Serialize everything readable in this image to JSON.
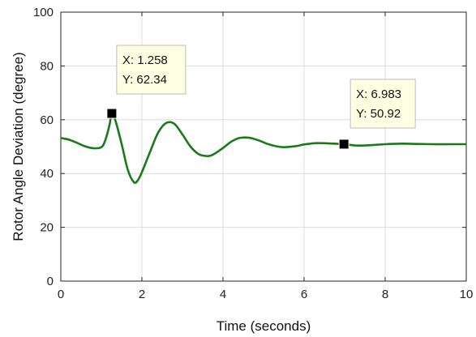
{
  "chart_data": {
    "type": "line",
    "title": "",
    "xlabel": "Time (seconds)",
    "ylabel": "Rotor Angle Deviation (degree)",
    "xlim": [
      0,
      10
    ],
    "ylim": [
      0,
      100
    ],
    "xticks": [
      0,
      2,
      4,
      6,
      8,
      10
    ],
    "yticks": [
      0,
      20,
      40,
      60,
      80,
      100
    ],
    "grid": true,
    "line_color": "#1a7a1a",
    "series": [
      {
        "x": [
          0,
          0.2,
          0.4,
          0.6,
          0.8,
          1.0,
          1.1,
          1.2,
          1.258,
          1.35,
          1.5,
          1.65,
          1.8,
          1.9,
          2.0,
          2.2,
          2.4,
          2.6,
          2.8,
          3.0,
          3.2,
          3.4,
          3.6,
          3.75,
          4.0,
          4.2,
          4.4,
          4.65,
          4.9,
          5.1,
          5.3,
          5.5,
          5.8,
          6.0,
          6.3,
          6.6,
          6.983,
          7.3,
          7.6,
          8.0,
          8.4,
          8.8,
          9.2,
          9.6,
          10.0
        ],
        "y": [
          53.2,
          52.6,
          51.4,
          50.1,
          49.4,
          49.8,
          52.5,
          58,
          62.34,
          59.5,
          51,
          41.5,
          36.8,
          37.5,
          40.5,
          48,
          55.2,
          58.8,
          58.5,
          54.5,
          50,
          47.2,
          46.5,
          47,
          49.5,
          51.8,
          53.2,
          53.3,
          52.2,
          51,
          50.2,
          49.8,
          50.2,
          50.8,
          51.3,
          51.2,
          50.92,
          50.4,
          50.5,
          50.9,
          51.1,
          51.0,
          50.9,
          50.9,
          50.9
        ]
      }
    ],
    "datatips": [
      {
        "x_label": "X: 1.258",
        "y_label": "Y: 62.34",
        "x": 1.258,
        "y": 62.34
      },
      {
        "x_label": "X: 6.983",
        "y_label": "Y: 50.92",
        "x": 6.983,
        "y": 50.92
      }
    ]
  }
}
